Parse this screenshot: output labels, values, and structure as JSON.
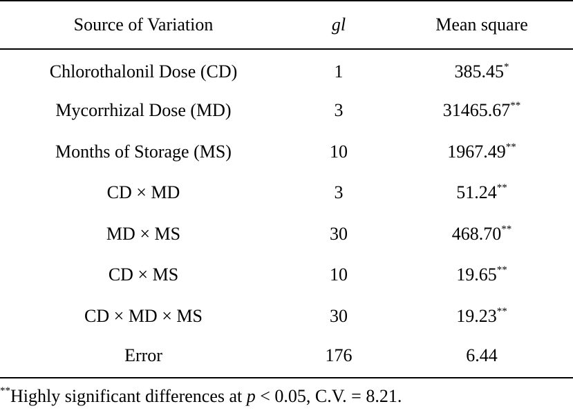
{
  "table": {
    "headers": [
      "Source of Variation",
      "gl",
      "Mean square"
    ],
    "rows": [
      {
        "source": "Chlorothalonil Dose (CD)",
        "gl": "1",
        "value": "385.45",
        "sig": "*"
      },
      {
        "source": "Mycorrhizal Dose (MD)",
        "gl": "3",
        "value": "31465.67",
        "sig": "**"
      },
      {
        "source": "Months of Storage (MS)",
        "gl": "10",
        "value": "1967.49",
        "sig": "**"
      },
      {
        "source": "CD × MD",
        "gl": "3",
        "value": "51.24",
        "sig": "**"
      },
      {
        "source": "MD × MS",
        "gl": "30",
        "value": "468.70",
        "sig": "**"
      },
      {
        "source": "CD × MS",
        "gl": "10",
        "value": "19.65",
        "sig": "**"
      },
      {
        "source": "CD × MD × MS",
        "gl": "30",
        "value": "19.23",
        "sig": "**"
      },
      {
        "source": "Error",
        "gl": "176",
        "value": "6.44",
        "sig": ""
      }
    ]
  },
  "footnote": {
    "marker": "**",
    "text_before": "Highly significant differences at ",
    "p_symbol": "p",
    "text_after": " < 0.05, C.V. = 8.21."
  }
}
